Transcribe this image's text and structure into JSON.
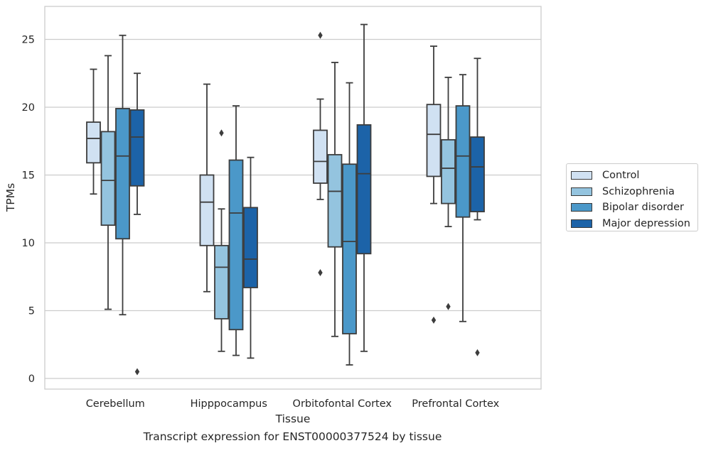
{
  "chart_data": {
    "type": "box",
    "caption": "Transcript expression for ENST00000377524 by tissue",
    "xlabel": "Tissue",
    "ylabel": "TPMs",
    "ylim": [
      -0.8,
      27.3
    ],
    "yticks": [
      0,
      5,
      10,
      15,
      20,
      25
    ],
    "grid": "horizontal",
    "legend_position": "right",
    "categories": [
      "Cerebellum",
      "Hipppocampus",
      "Orbitofontal Cortex",
      "Prefrontal Cortex"
    ],
    "series": [
      {
        "name": "Control",
        "color": "#d0e1f2",
        "boxes": [
          {
            "whisker_low": 13.6,
            "q1": 15.9,
            "median": 17.7,
            "q3": 18.9,
            "whisker_high": 22.8,
            "outliers": []
          },
          {
            "whisker_low": 6.4,
            "q1": 9.8,
            "median": 13.0,
            "q3": 15.0,
            "whisker_high": 21.7,
            "outliers": []
          },
          {
            "whisker_low": 13.2,
            "q1": 14.4,
            "median": 16.0,
            "q3": 18.3,
            "whisker_high": 20.6,
            "outliers": [
              25.3,
              7.8
            ]
          },
          {
            "whisker_low": 12.9,
            "q1": 14.9,
            "median": 18.0,
            "q3": 20.2,
            "whisker_high": 24.5,
            "outliers": [
              4.3
            ]
          }
        ]
      },
      {
        "name": "Schizophrenia",
        "color": "#94c4df",
        "boxes": [
          {
            "whisker_low": 5.1,
            "q1": 11.3,
            "median": 14.6,
            "q3": 18.2,
            "whisker_high": 23.8,
            "outliers": []
          },
          {
            "whisker_low": 2.0,
            "q1": 4.4,
            "median": 8.2,
            "q3": 9.8,
            "whisker_high": 12.5,
            "outliers": [
              18.1
            ]
          },
          {
            "whisker_low": 3.1,
            "q1": 9.7,
            "median": 13.8,
            "q3": 16.5,
            "whisker_high": 23.3,
            "outliers": []
          },
          {
            "whisker_low": 11.2,
            "q1": 12.9,
            "median": 15.5,
            "q3": 17.6,
            "whisker_high": 22.2,
            "outliers": [
              5.3
            ]
          }
        ]
      },
      {
        "name": "Bipolar disorder",
        "color": "#4b98c9",
        "boxes": [
          {
            "whisker_low": 4.7,
            "q1": 10.3,
            "median": 16.4,
            "q3": 19.9,
            "whisker_high": 25.3,
            "outliers": []
          },
          {
            "whisker_low": 1.7,
            "q1": 3.6,
            "median": 12.2,
            "q3": 16.1,
            "whisker_high": 20.1,
            "outliers": []
          },
          {
            "whisker_low": 1.0,
            "q1": 3.3,
            "median": 10.1,
            "q3": 15.8,
            "whisker_high": 21.8,
            "outliers": []
          },
          {
            "whisker_low": 4.2,
            "q1": 11.9,
            "median": 16.4,
            "q3": 20.1,
            "whisker_high": 22.4,
            "outliers": []
          }
        ]
      },
      {
        "name": "Major depression",
        "color": "#1c63a8",
        "boxes": [
          {
            "whisker_low": 12.1,
            "q1": 14.2,
            "median": 17.8,
            "q3": 19.8,
            "whisker_high": 22.5,
            "outliers": [
              0.5
            ]
          },
          {
            "whisker_low": 1.5,
            "q1": 6.7,
            "median": 8.8,
            "q3": 12.6,
            "whisker_high": 16.3,
            "outliers": []
          },
          {
            "whisker_low": 2.0,
            "q1": 9.2,
            "median": 15.1,
            "q3": 18.7,
            "whisker_high": 26.1,
            "outliers": []
          },
          {
            "whisker_low": 11.7,
            "q1": 12.3,
            "median": 15.6,
            "q3": 17.8,
            "whisker_high": 23.6,
            "outliers": [
              1.9
            ]
          }
        ]
      }
    ]
  }
}
